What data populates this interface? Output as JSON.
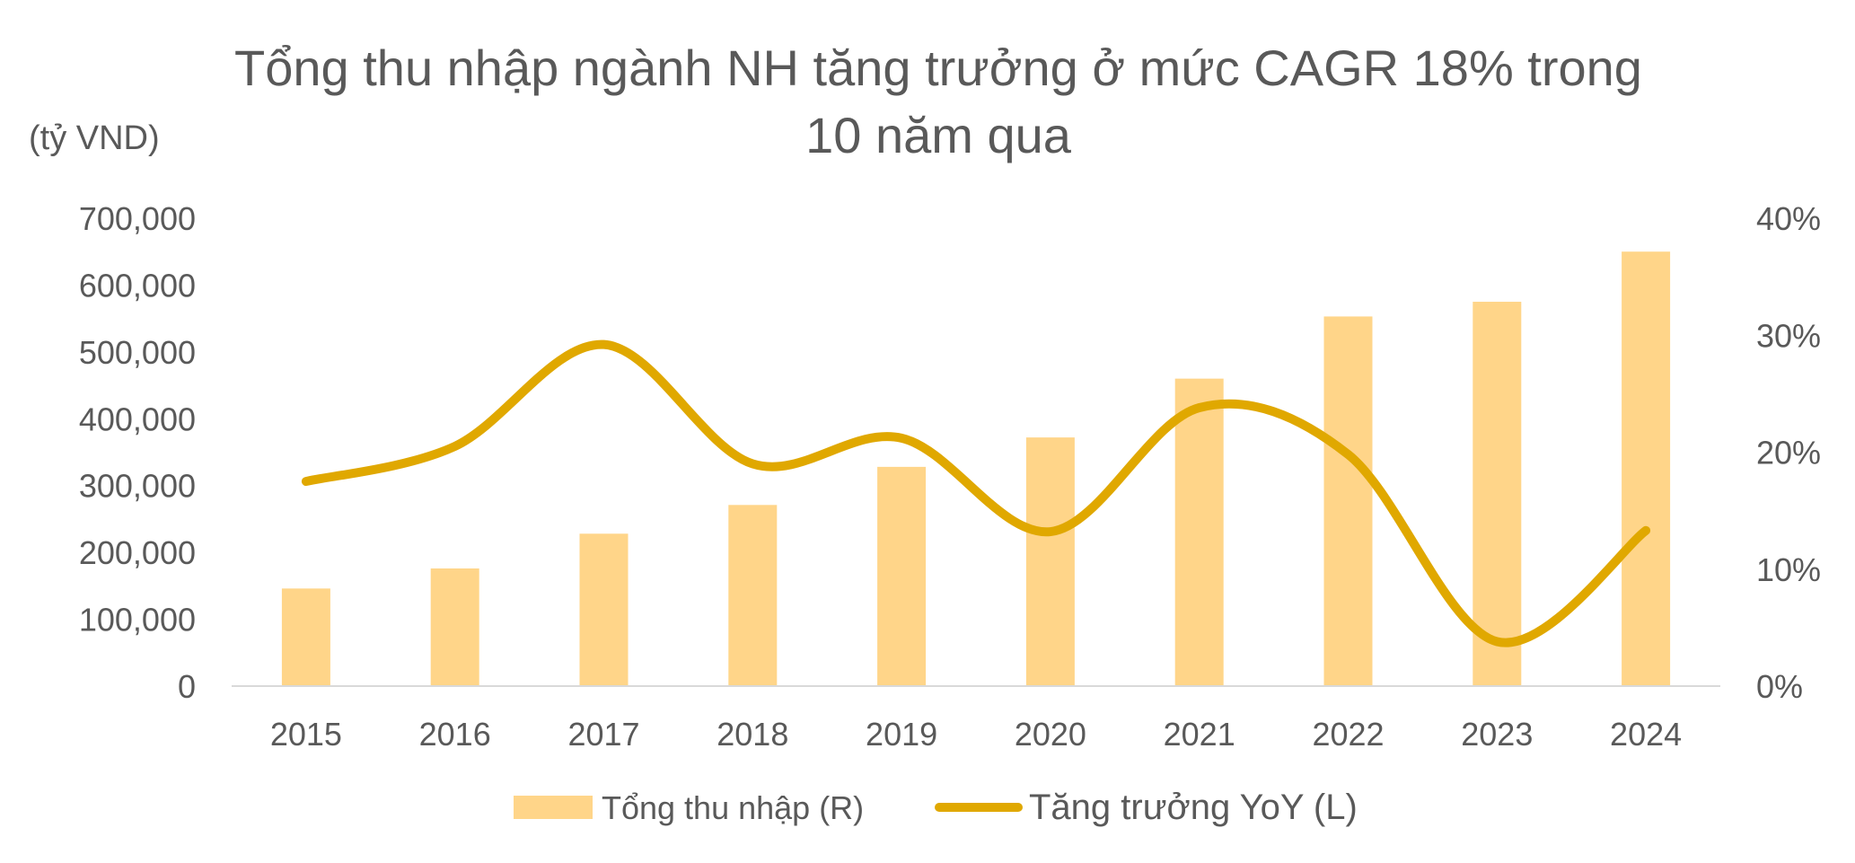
{
  "chart_data": {
    "type": "bar",
    "title": "Tổng thu nhập ngành NH tăng trưởng ở mức CAGR 18% trong 10 năm qua",
    "title_lines": [
      "Tổng thu nhập ngành NH tăng trưởng ở mức CAGR 18% trong",
      "10 năm qua"
    ],
    "unit_label": "(tỷ VND)",
    "categories": [
      "2015",
      "2016",
      "2017",
      "2018",
      "2019",
      "2020",
      "2021",
      "2022",
      "2023",
      "2024"
    ],
    "series": [
      {
        "name": "Tổng thu nhập (R)",
        "type": "bar",
        "axis": "left",
        "color": "#FFD589",
        "values": [
          146000,
          176000,
          228000,
          271000,
          328000,
          372000,
          460000,
          553000,
          575000,
          650000
        ]
      },
      {
        "name": "Tăng trưởng YoY (L)",
        "type": "line",
        "axis": "right",
        "color": "#E0A800",
        "values": [
          0.175,
          0.205,
          0.292,
          0.19,
          0.212,
          0.132,
          0.238,
          0.198,
          0.038,
          0.133
        ]
      }
    ],
    "left_axis": {
      "ylim": [
        0,
        700000
      ],
      "ticks": [
        0,
        100000,
        200000,
        300000,
        400000,
        500000,
        600000,
        700000
      ],
      "tick_labels": [
        "0",
        "100,000",
        "200,000",
        "300,000",
        "400,000",
        "500,000",
        "600,000",
        "700,000"
      ]
    },
    "right_axis": {
      "ylim": [
        0,
        0.4
      ],
      "ticks": [
        0,
        0.1,
        0.2,
        0.3,
        0.4
      ],
      "tick_labels": [
        "0%",
        "10%",
        "20%",
        "30%",
        "40%"
      ]
    },
    "grid": false,
    "legend_position": "bottom-center",
    "text_color": "#595959",
    "axis_line_color": "#D9D9D9"
  }
}
